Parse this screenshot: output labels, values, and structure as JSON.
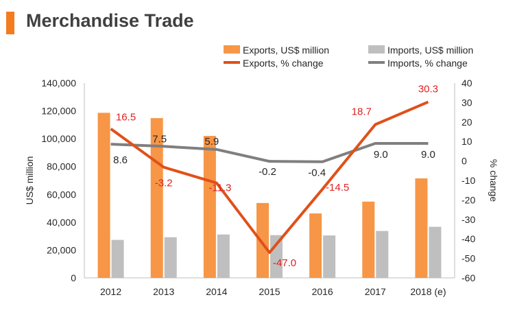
{
  "title": "Merchandise Trade",
  "colors": {
    "accent": "#F47B20",
    "exports_bar": "#F79646",
    "imports_bar": "#BFBFBF",
    "exports_line": "#E0501A",
    "imports_line": "#7F7F7F",
    "exports_label": "#E02020",
    "imports_label": "#262626"
  },
  "chart_data": {
    "type": "bar",
    "categories": [
      "2012",
      "2013",
      "2014",
      "2015",
      "2016",
      "2017",
      "2018 (e)"
    ],
    "series": [
      {
        "name": "Exports, US$ million",
        "type": "bar",
        "axis": "left",
        "values": [
          118600,
          114800,
          102000,
          53800,
          46300,
          54800,
          71500
        ]
      },
      {
        "name": "Imports, US$ million",
        "type": "bar",
        "axis": "left",
        "values": [
          27300,
          29200,
          31200,
          30700,
          30500,
          33700,
          36700
        ]
      },
      {
        "name": "Exports, % change",
        "type": "line",
        "axis": "right",
        "values": [
          16.5,
          -3.2,
          -11.3,
          -47.0,
          -14.5,
          18.7,
          30.3
        ],
        "labels": [
          "16.5",
          "-3.2",
          "-11.3",
          "-47.0",
          "-14.5",
          "18.7",
          "30.3"
        ]
      },
      {
        "name": "Imports, % change",
        "type": "line",
        "axis": "right",
        "values": [
          8.6,
          7.5,
          5.9,
          -0.2,
          -0.4,
          9.0,
          9.0
        ],
        "labels": [
          "8.6",
          "7.5",
          "5.9",
          "-0.2",
          "-0.4",
          "9.0",
          "9.0"
        ]
      }
    ],
    "ylabel": "US$ million",
    "y2label": "% change",
    "ylim": [
      0,
      140000
    ],
    "y2lim": [
      -60,
      40
    ],
    "yticks": [
      "0",
      "20,000",
      "40,000",
      "60,000",
      "80,000",
      "100,000",
      "120,000",
      "140,000"
    ],
    "y2ticks": [
      "-60",
      "-50",
      "-40",
      "-30",
      "-20",
      "-10",
      "0",
      "10",
      "20",
      "30",
      "40"
    ],
    "grid": false,
    "legend_position": "top"
  }
}
